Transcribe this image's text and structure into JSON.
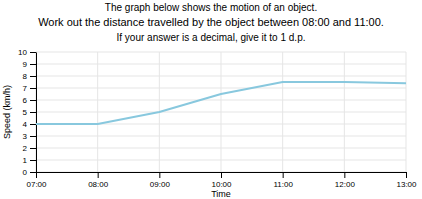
{
  "chart_data": {
    "type": "line",
    "title": "The graph below shows the motion of an object.",
    "subtitle": [
      "Work out the distance travelled by the object between 08:00 and 11:00.",
      "If your answer is a decimal, give it to 1 d.p."
    ],
    "x": [
      7,
      8,
      9,
      10,
      11,
      12,
      13
    ],
    "series": [
      {
        "name": "Speed",
        "color": "#88c8de",
        "values": [
          4,
          4,
          5,
          6.5,
          7.5,
          7.5,
          7.4
        ]
      }
    ],
    "xlim": [
      7,
      13
    ],
    "xticks": [
      {
        "value": 7,
        "label": "07:00"
      },
      {
        "value": 8,
        "label": "08:00"
      },
      {
        "value": 9,
        "label": "09:00"
      },
      {
        "value": 10,
        "label": "10:00"
      },
      {
        "value": 11,
        "label": "11:00"
      },
      {
        "value": 12,
        "label": "12:00"
      },
      {
        "value": 13,
        "label": "13:00"
      }
    ],
    "ylim": [
      0,
      10
    ],
    "yticks": [
      0,
      1,
      2,
      3,
      4,
      5,
      6,
      7,
      8,
      9,
      10
    ],
    "xlabel": "Time",
    "ylabel": "Speed (km/h)",
    "grid": true
  }
}
